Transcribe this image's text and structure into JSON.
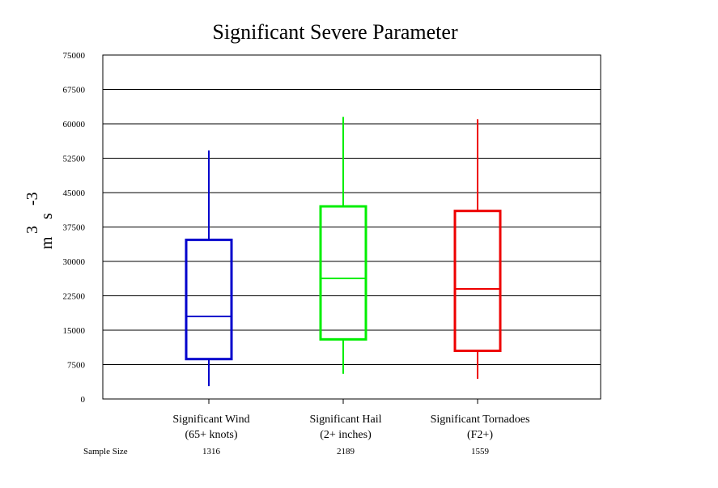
{
  "chart_data": {
    "type": "boxplot",
    "title": "Significant Severe Parameter",
    "ylabel": {
      "base1": "m",
      "exp1": "3",
      "base2": "s",
      "exp2": "-3"
    },
    "ylim": [
      0,
      75000
    ],
    "yticks": [
      "0",
      "7500",
      "15000",
      "22500",
      "30000",
      "37500",
      "45000",
      "52500",
      "60000",
      "67500",
      "75000"
    ],
    "grid": true,
    "categories": [
      {
        "line1": "Significant Wind",
        "line2": "(65+ knots)",
        "sample": "1316",
        "color": "#0000cc",
        "min": 2800,
        "q1": 8700,
        "median": 18000,
        "q3": 34700,
        "max": 54200
      },
      {
        "line1": "Significant Hail",
        "line2": "(2+ inches)",
        "sample": "2189",
        "color": "#00ee00",
        "min": 5500,
        "q1": 13000,
        "median": 26300,
        "q3": 42000,
        "max": 61500
      },
      {
        "line1": "Significant Tornadoes",
        "line2": "(F2+)",
        "sample": "1559",
        "color": "#ee0000",
        "min": 4400,
        "q1": 10500,
        "median": 24000,
        "q3": 41000,
        "max": 61000
      }
    ],
    "sample_label": "Sample Size"
  }
}
